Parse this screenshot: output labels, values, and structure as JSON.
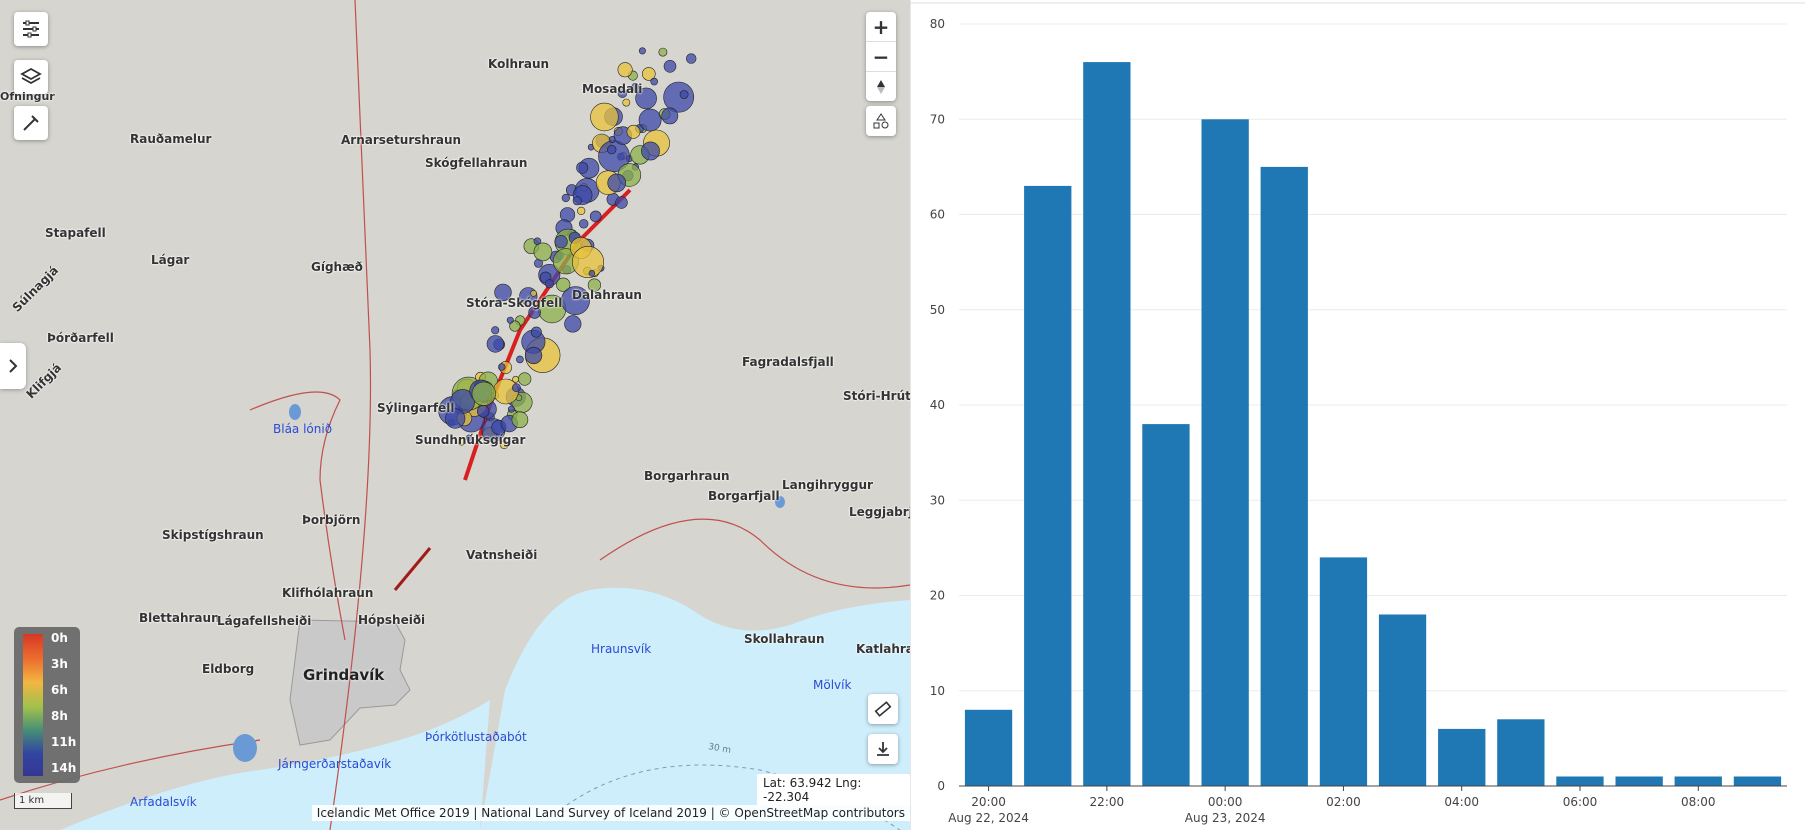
{
  "map": {
    "places": [
      {
        "name": "Kolhraun"
      },
      {
        "name": "Mosadali"
      },
      {
        "name": "Rauðamelur"
      },
      {
        "name": "Arnarsetur­shraun"
      },
      {
        "name": "Skógfellahraun"
      },
      {
        "name": "Stapafell"
      },
      {
        "name": "Lágar"
      },
      {
        "name": "Gíghæð"
      },
      {
        "name": "Súlnagjá"
      },
      {
        "name": "Þórðarfell"
      },
      {
        "name": "Stóra-Skógfell"
      },
      {
        "name": "Dalahraun"
      },
      {
        "name": "Fagradalsfjall"
      },
      {
        "name": "Stóri-Hrútur"
      },
      {
        "name": "Sýlingarfell"
      },
      {
        "name": "Sundhnúksgígar"
      },
      {
        "name": "Borgarhraun"
      },
      {
        "name": "Borgarfjall"
      },
      {
        "name": "Langihryggur"
      },
      {
        "name": "Leggjabrjótur"
      },
      {
        "name": "Þorbjörn"
      },
      {
        "name": "Skipstígshraun"
      },
      {
        "name": "Vatnsheiði"
      },
      {
        "name": "Klifhólahraun"
      },
      {
        "name": "Blettahraun"
      },
      {
        "name": "Lágafellsheiði"
      },
      {
        "name": "Hópsheiði"
      },
      {
        "name": "Eldborg"
      },
      {
        "name": "Skollahraun"
      },
      {
        "name": "Katlahraun"
      },
      {
        "name": "Klifgjá"
      },
      {
        "name": "Ofningur"
      }
    ],
    "waters": [
      {
        "name": "Bláa lónið"
      },
      {
        "name": "Hraunsvík"
      },
      {
        "name": "Mölvík"
      },
      {
        "name": "Þórkötlustaðabót"
      },
      {
        "name": "Járngerðarstaðavík"
      },
      {
        "name": "Arfadalsvík"
      }
    ],
    "town": "Grindavík",
    "contour_label": "30 m",
    "legend": {
      "labels": [
        "0h",
        "3h",
        "6h",
        "8h",
        "11h",
        "14h"
      ]
    },
    "scale_label": "1 km",
    "coords": "Lat: 63.942 Lng: -22.304",
    "attribution": "Icelandic Met Office 2019 | National Land Survey of Iceland 2019 | © OpenStreetMap contributors",
    "controls": {
      "zoom_in": "+",
      "zoom_out": "−"
    },
    "colors": {
      "eq_recent": "#e8c33a",
      "eq_mid": "#8cb04a",
      "eq_old": "#3c48a8",
      "fissure": "#d82020",
      "water": "#cfeefb",
      "land": "#d6d5cf"
    }
  },
  "chart_data": {
    "type": "bar",
    "categories": [
      "Aug 22 20:00",
      "Aug 22 21:00",
      "Aug 22 22:00",
      "Aug 22 23:00",
      "Aug 23 00:00",
      "Aug 23 01:00",
      "Aug 23 02:00",
      "Aug 23 03:00",
      "Aug 23 04:00",
      "Aug 23 05:00",
      "Aug 23 06:00",
      "Aug 23 07:00",
      "Aug 23 08:00",
      "Aug 23 09:00"
    ],
    "values": [
      8,
      63,
      76,
      38,
      70,
      65,
      24,
      18,
      6,
      7,
      1,
      1,
      1,
      1
    ],
    "ylim": [
      0,
      80
    ],
    "yticks": [
      0,
      10,
      20,
      30,
      40,
      50,
      60,
      70,
      80
    ],
    "xticks": [
      {
        "label": "20:00",
        "sub": "Aug 22, 2024",
        "index": 0
      },
      {
        "label": "22:00",
        "sub": "",
        "index": 2
      },
      {
        "label": "00:00",
        "sub": "Aug 23, 2024",
        "index": 4
      },
      {
        "label": "02:00",
        "sub": "",
        "index": 6
      },
      {
        "label": "04:00",
        "sub": "",
        "index": 8
      },
      {
        "label": "06:00",
        "sub": "",
        "index": 10
      },
      {
        "label": "08:00",
        "sub": "",
        "index": 12
      }
    ],
    "bar_color": "#1f77b4",
    "grid": true
  }
}
